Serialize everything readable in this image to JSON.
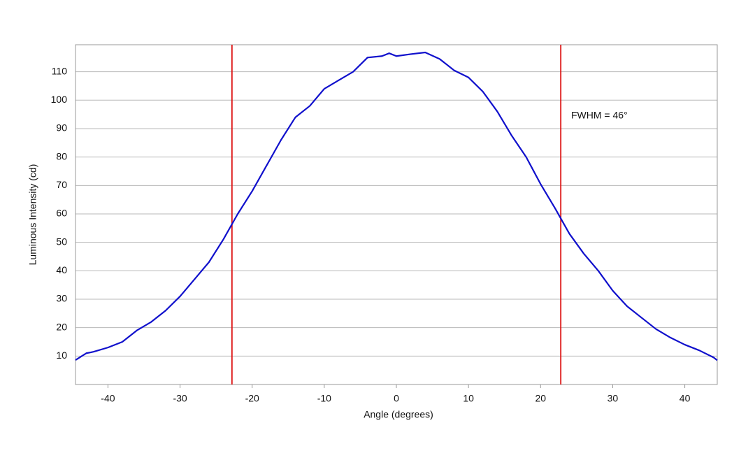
{
  "chart_data": {
    "type": "line",
    "x_label": "Angle (degrees)",
    "y_label": "Luminous Intensity (cd)",
    "annotation": "FWHM = 46°",
    "x": [
      -44.5,
      -43,
      -42,
      -40,
      -38,
      -36,
      -34,
      -32,
      -30,
      -28,
      -26,
      -24,
      -22,
      -20,
      -18,
      -16,
      -14,
      -12,
      -10,
      -8,
      -6,
      -4,
      -2,
      -1,
      0,
      2,
      4,
      6,
      8,
      10,
      12,
      14,
      16,
      18,
      20,
      22,
      24,
      26,
      28,
      30,
      32,
      34,
      36,
      38,
      40,
      42,
      44,
      44.5
    ],
    "series": [
      {
        "name": "Luminous Intensity",
        "color": "#1010cc",
        "values": [
          8.6,
          11,
          11.5,
          13,
          15,
          19,
          22,
          26,
          31,
          37,
          43,
          51,
          60,
          68,
          77,
          86,
          94,
          98,
          104,
          107,
          110,
          115,
          115.5,
          116.5,
          115.5,
          116.2,
          116.8,
          114.5,
          110.5,
          108,
          103,
          96,
          87.5,
          80,
          70.5,
          62,
          53,
          46,
          40,
          33,
          27.5,
          23.5,
          19.5,
          16.5,
          14,
          12,
          9.5,
          8.5
        ]
      }
    ],
    "markers": {
      "x": [
        -22.8,
        22.8
      ],
      "color": "#dd1111"
    },
    "xlim": [
      -44.5,
      44.5
    ],
    "ylim": [
      0,
      119.5
    ],
    "xticks": [
      -40,
      -30,
      -20,
      -10,
      0,
      10,
      20,
      30,
      40
    ],
    "yticks": [
      10,
      20,
      30,
      40,
      50,
      60,
      70,
      80,
      90,
      100,
      110
    ],
    "grid": true
  }
}
